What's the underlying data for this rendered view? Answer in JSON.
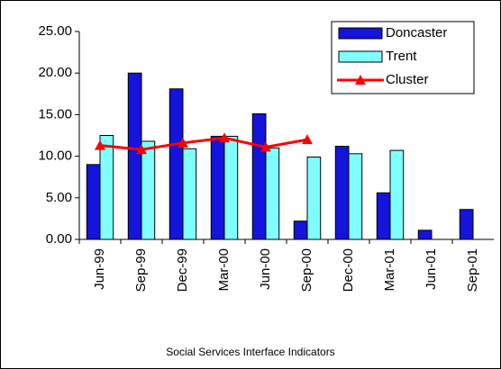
{
  "chart_data": {
    "type": "bar",
    "title": "Social Services Interface Indicators",
    "categories": [
      "Jun-99",
      "Sep-99",
      "Dec-99",
      "Mar-00",
      "Jun-00",
      "Sep-00",
      "Dec-00",
      "Mar-01",
      "Jun-01",
      "Sep-01"
    ],
    "series": [
      {
        "name": "Doncaster",
        "type": "bar",
        "color": "#1414dc",
        "values": [
          9.0,
          20.0,
          18.1,
          12.4,
          15.1,
          2.2,
          11.2,
          5.6,
          1.1,
          3.6
        ]
      },
      {
        "name": "Trent",
        "type": "bar",
        "color": "#80ffff",
        "values": [
          12.5,
          11.8,
          10.9,
          12.4,
          11.0,
          9.9,
          10.3,
          10.7,
          null,
          null
        ]
      },
      {
        "name": "Cluster",
        "type": "line",
        "color": "#ff0000",
        "values": [
          11.3,
          10.8,
          11.6,
          12.2,
          11.1,
          12.0,
          null,
          null,
          null,
          null
        ]
      }
    ],
    "ylim": [
      0,
      25
    ],
    "yticks": [
      {
        "value": 0,
        "label": "0.00"
      },
      {
        "value": 5,
        "label": "5.00"
      },
      {
        "value": 10,
        "label": "10.00"
      },
      {
        "value": 15,
        "label": "15.00"
      },
      {
        "value": 20,
        "label": "20.00"
      },
      {
        "value": 25,
        "label": "25.00"
      }
    ],
    "grid": false,
    "legend": "upper right"
  }
}
